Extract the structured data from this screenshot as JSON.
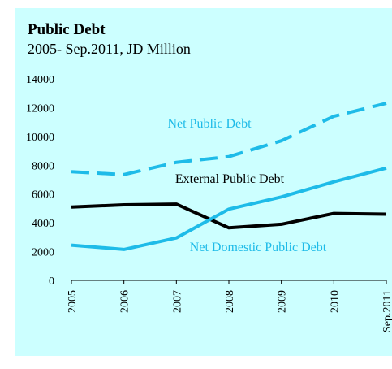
{
  "chart_data": {
    "type": "line",
    "title": "Public Debt",
    "subtitle": "2005- Sep.2011, JD Million",
    "xlabel": "",
    "ylabel": "",
    "categories": [
      "2005",
      "2006",
      "2007",
      "2008",
      "2009",
      "2010",
      "Sep.2011"
    ],
    "ylim": [
      0,
      14000
    ],
    "yticks": [
      0,
      2000,
      4000,
      6000,
      8000,
      10000,
      12000,
      14000
    ],
    "grid": false,
    "legend": "none",
    "series": [
      {
        "name": "Net Public Debt",
        "color": "#1ebbe8",
        "dash": "dashed",
        "values": [
          7550,
          7350,
          8200,
          8600,
          9700,
          11400,
          12300
        ]
      },
      {
        "name": "External Public Debt",
        "color": "#000000",
        "dash": "solid",
        "values": [
          5100,
          5250,
          5300,
          3650,
          3900,
          4650,
          4600
        ]
      },
      {
        "name": "Net Domestic Public Debt",
        "color": "#1ebbe8",
        "dash": "solid",
        "values": [
          2450,
          2150,
          2950,
          4950,
          5800,
          6850,
          7800
        ]
      }
    ]
  }
}
